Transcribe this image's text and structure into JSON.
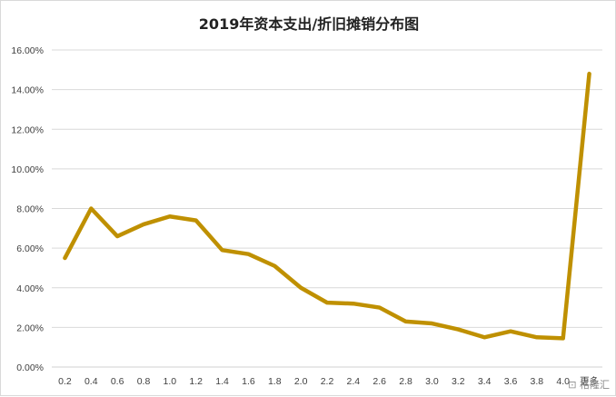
{
  "chart_data": {
    "type": "line",
    "title": "2019年资本支出/折旧摊销分布图",
    "xlabel": "",
    "ylabel": "",
    "x": [
      "0.2",
      "0.4",
      "0.6",
      "0.8",
      "1.0",
      "1.2",
      "1.4",
      "1.6",
      "1.8",
      "2.0",
      "2.2",
      "2.4",
      "2.6",
      "2.8",
      "3.0",
      "3.2",
      "3.4",
      "3.6",
      "3.8",
      "4.0",
      "更多"
    ],
    "series": [
      {
        "values": [
          5.5,
          8.0,
          6.6,
          7.2,
          7.6,
          7.4,
          5.9,
          5.7,
          5.1,
          4.0,
          3.25,
          3.2,
          3.0,
          2.3,
          2.2,
          1.9,
          1.5,
          1.8,
          1.5,
          1.45,
          14.8
        ],
        "color": "#BF9000"
      }
    ],
    "ylim": [
      0,
      16
    ],
    "y_ticks": [
      0,
      2,
      4,
      6,
      8,
      10,
      12,
      14,
      16
    ],
    "y_tick_format": "percent_2dp",
    "grid": "horizontal",
    "legend": "none"
  },
  "watermark": {
    "text": "格隆汇",
    "icon": "stamp-icon"
  }
}
